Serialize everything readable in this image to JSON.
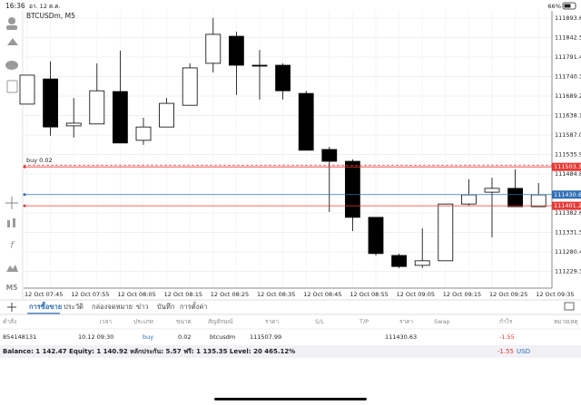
{
  "status_bar": {
    "time": "16:36",
    "date": "อา. 12 ต.ค.",
    "battery": "66%"
  },
  "toolbar": {
    "timeframe": "M5"
  },
  "chart_data": {
    "type": "candlestick",
    "title": "BTCUSDm, M5",
    "categories": [
      "12 Oct 07:45",
      null,
      "12 Oct 07:55",
      null,
      "12 Oct 08:05",
      null,
      "12 Oct 08:15",
      null,
      "12 Oct 08:25",
      null,
      "12 Oct 08:35",
      null,
      "12 Oct 08:45",
      null,
      "12 Oct 08:55",
      null,
      "12 Oct 09:05",
      null,
      "12 Oct 09:15",
      null,
      "12 Oct 09:25",
      null,
      "12 Oct 09:35"
    ],
    "open": [
      111668,
      111734,
      111611,
      111616,
      111701,
      111573,
      111608,
      111665,
      111775,
      111846,
      111770,
      111770,
      111696,
      111549,
      111518,
      111371,
      111271,
      111245,
      111257,
      111406,
      111437,
      111447,
      111399
    ],
    "high": [
      111744,
      111780,
      111684,
      111775,
      111808,
      111632,
      111684,
      111775,
      111894,
      111858,
      111810,
      111775,
      111703,
      111556,
      111523,
      111371,
      111276,
      111342,
      111406,
      111471,
      111475,
      111497,
      111461
    ],
    "low": [
      111668,
      111585,
      111580,
      111616,
      111566,
      111561,
      111608,
      111665,
      111751,
      111692,
      111680,
      111680,
      111547,
      111385,
      111335,
      111271,
      111238,
      111238,
      111257,
      111402,
      111318,
      111399,
      111399
    ],
    "close": [
      111744,
      111608,
      111618,
      111703,
      111566,
      111608,
      111670,
      111763,
      111851,
      111770,
      111768,
      111703,
      111547,
      111518,
      111371,
      111276,
      111242,
      111257,
      111406,
      111430,
      111447,
      111399,
      111430
    ],
    "up_color": "#ffffff",
    "down_color": "#000000",
    "ylim": [
      111185.3,
      111912.6
    ],
    "yticks": [
      {
        "value": 111893.6,
        "label": "111893.60"
      },
      {
        "value": 111842.5,
        "label": "111842.50"
      },
      {
        "value": 111791.4,
        "label": "111791.40"
      },
      {
        "value": 111740.3,
        "label": "111740.30"
      },
      {
        "value": 111689.2,
        "label": "111689.20"
      },
      {
        "value": 111638.1,
        "label": "111638.10"
      },
      {
        "value": 111587,
        "label": "111587.00"
      },
      {
        "value": 111535.9,
        "label": "111535.90"
      },
      {
        "value": 111484.8,
        "label": "111484.80"
      },
      {
        "value": 111382.6,
        "label": "111382.60"
      },
      {
        "value": 111331.5,
        "label": "111331.50"
      },
      {
        "value": 111280.4,
        "label": "111280.40"
      },
      {
        "value": 111229.3,
        "label": "111229.30"
      }
    ],
    "grid": true,
    "order_line": {
      "label": "buy 0.02",
      "value": 111507.99
    },
    "price_lines": [
      {
        "value": 111503.34,
        "color": "#e53935"
      },
      {
        "value": 111430.63,
        "color": "#2f6fb6"
      },
      {
        "value": 111401.28,
        "color": "#e53935"
      }
    ]
  },
  "tabs": [
    "การซื้อขาย",
    "ประวัติ",
    "กล่องจดหมาย",
    "ข่าว",
    "บันทึก",
    "การตั้งค่า"
  ],
  "table": {
    "columns": [
      "คำสั่ง",
      "เวลา",
      "ประเภท",
      "ขนาด",
      "สัญลักษณ์",
      "ราคา",
      "S/L",
      "T/P",
      "ราคา",
      "Swap",
      "กำไร",
      "หมายเหตุ"
    ],
    "row": {
      "order": "854148131",
      "time": "10.12 09:30",
      "type": "buy",
      "volume": "0.02",
      "symbol": "btcusdm",
      "price": "111507.99",
      "current_price": "111430.63",
      "profit": "-1.55"
    }
  },
  "account": {
    "summary": "Balance: 1 142.47 Equity: 1 140.92 หลักประกัน: 5.57 ฟรี: 1 135.35 Level: 20 465.12%",
    "profit": "-1.55",
    "currency": "USD"
  }
}
